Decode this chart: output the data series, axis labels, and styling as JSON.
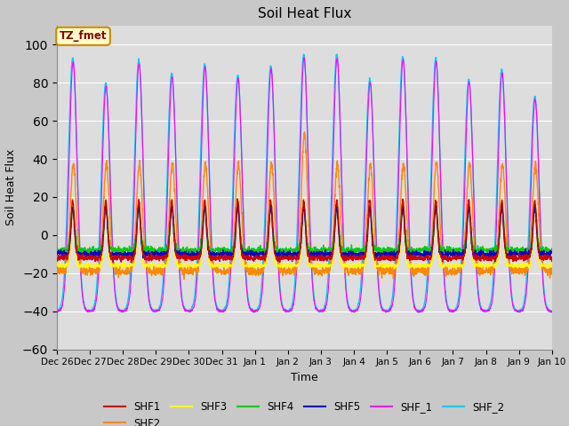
{
  "title": "Soil Heat Flux",
  "xlabel": "Time",
  "ylabel": "Soil Heat Flux",
  "ylim": [
    -60,
    110
  ],
  "yticks": [
    -60,
    -40,
    -20,
    0,
    20,
    40,
    60,
    80,
    100
  ],
  "date_labels": [
    "Dec 26",
    "Dec 27",
    "Dec 28",
    "Dec 29",
    "Dec 30",
    "Dec 31",
    "Jan 1",
    "Jan 2",
    "Jan 3",
    "Jan 4",
    "Jan 5",
    "Jan 6",
    "Jan 7",
    "Jan 8",
    "Jan 9",
    "Jan 10"
  ],
  "annotation_text": "TZ_fmet",
  "annotation_bg": "#ffffcc",
  "annotation_border": "#cc8800",
  "annotation_text_color": "#880000",
  "series_colors": {
    "SHF1": "#cc0000",
    "SHF2": "#ff8800",
    "SHF3": "#ffff00",
    "SHF4": "#00cc00",
    "SHF5": "#0000cc",
    "SHF_1": "#ff00ff",
    "SHF_2": "#00ccff"
  },
  "bg_color": "#dddddd",
  "grid_color": "#ffffff",
  "fig_bg": "#c8c8c8",
  "n_days": 15,
  "points_per_day": 144,
  "peak_heights_cyan": [
    93,
    80,
    92,
    85,
    90,
    84,
    89,
    95,
    95,
    82,
    94,
    93,
    82,
    87,
    73
  ],
  "peak_heights_orange": [
    37,
    37,
    37,
    37,
    37,
    37,
    37,
    53,
    37,
    37,
    37,
    37,
    37,
    37,
    37
  ]
}
